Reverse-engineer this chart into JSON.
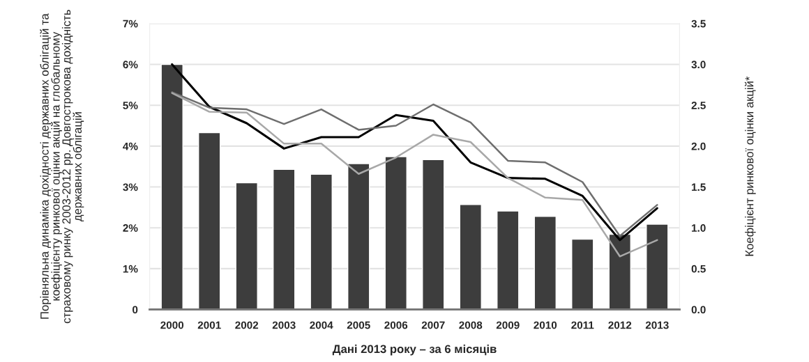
{
  "chart_data": {
    "type": "bar",
    "ylabel": "Порівняльна динаміка дохідності державних облігацій та коефіцієнту ринкової оцінки акцій на глобальному страховому ринку 2003-2012 рр. Довгострокова дохідність державних облігацій",
    "y2label": "Коефіцієнт ринкової оцінки акцій*",
    "xlabel": "Дані 2013 року – за 6 місяців",
    "categories": [
      "2000",
      "2001",
      "2002",
      "2003",
      "2004",
      "2005",
      "2006",
      "2007",
      "2008",
      "2009",
      "2010",
      "2011",
      "2012",
      "2013"
    ],
    "series": [
      {
        "color": "#3d3d3d",
        "values": [
          6.0,
          4.33,
          3.1,
          3.43,
          3.31,
          3.57,
          3.74,
          3.67,
          2.57,
          2.41,
          2.28,
          1.72,
          1.84,
          2.09
        ]
      },
      {
        "type": "line",
        "axis": "y2",
        "color": "#000000",
        "values": [
          3.0,
          2.48,
          2.28,
          1.97,
          2.11,
          2.11,
          2.38,
          2.31,
          1.8,
          1.61,
          1.6,
          1.39,
          0.85,
          1.24
        ]
      },
      {
        "type": "line",
        "axis": "y2",
        "color": "#6e6e6e",
        "values": [
          2.66,
          2.47,
          2.45,
          2.27,
          2.45,
          2.2,
          2.25,
          2.51,
          2.29,
          1.82,
          1.8,
          1.56,
          0.9,
          1.28
        ]
      },
      {
        "type": "line",
        "axis": "y2",
        "color": "#a8a8a8",
        "values": [
          2.65,
          2.42,
          2.41,
          2.03,
          2.03,
          1.66,
          1.86,
          2.14,
          2.05,
          1.61,
          1.37,
          1.34,
          0.65,
          0.85
        ]
      }
    ],
    "ylim": [
      0,
      7
    ],
    "yticks": [
      0,
      {
        "value": 1,
        "label": "1%"
      },
      {
        "value": 2,
        "label": "2%"
      },
      {
        "value": 3,
        "label": "3%"
      },
      {
        "value": 4,
        "label": "4%"
      },
      {
        "value": 5,
        "label": "5%"
      },
      {
        "value": 6,
        "label": "6%"
      },
      {
        "value": 7,
        "label": "7%"
      }
    ],
    "y2lim": [
      0,
      3.5
    ],
    "y2ticks": [
      {
        "value": 0,
        "label": "0.0"
      },
      0.5,
      {
        "value": 1,
        "label": "1.0"
      },
      1.5,
      {
        "value": 2,
        "label": "2.0"
      },
      2.5,
      {
        "value": 3,
        "label": "3.0"
      },
      3.5
    ],
    "grid": "y",
    "legend": false,
    "marker": "none",
    "line_style": "solid"
  }
}
